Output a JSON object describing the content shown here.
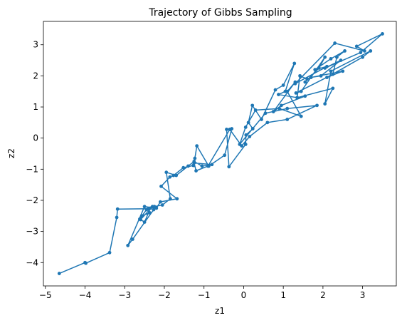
{
  "chart_data": {
    "type": "line",
    "title": "Trajectory of Gibbs Sampling",
    "xlabel": "z1",
    "ylabel": "z2",
    "xlim": [
      -5.05,
      3.85
    ],
    "ylim": [
      -4.75,
      3.75
    ],
    "xticks": [
      -5,
      -4,
      -3,
      -2,
      -1,
      0,
      1,
      2,
      3
    ],
    "yticks": [
      -4,
      -3,
      -2,
      -1,
      0,
      1,
      2,
      3
    ],
    "grid": false,
    "series_color": "#1f77b4",
    "marker": "circle",
    "series": [
      {
        "x": [
          -4.65,
          -4.0,
          -3.98,
          -3.38,
          -3.2,
          -3.18,
          -2.4,
          -2.37,
          -2.57,
          -2.6,
          -2.3,
          -2.27,
          -2.8,
          -2.92,
          -2.5,
          -2.2,
          -2.1,
          -1.68,
          -2.08,
          -1.86,
          -1.77,
          -1.52,
          -1.27,
          -1.23,
          -1.18,
          -0.88,
          -0.48,
          -0.3,
          -0.43,
          -0.37,
          0.05,
          0.06,
          0.23,
          0.12,
          0.22,
          0.45,
          0.8,
          1.0,
          1.28,
          1.05,
          0.88,
          1.35,
          1.42,
          1.6,
          1.55,
          1.9,
          2.05,
          1.45,
          1.32,
          2.25,
          2.35,
          2.55,
          2.2,
          1.8,
          2.1,
          1.3,
          2.3,
          3.05,
          2.85,
          3.5,
          2.95,
          2.05,
          2.45,
          1.95,
          1.7,
          2.5,
          2.1,
          3.0,
          3.2,
          2.2,
          2.05,
          2.25,
          1.35,
          1.55,
          0.95,
          0.75,
          1.3,
          1.1,
          1.45,
          0.9,
          0.3,
          0.05,
          -0.1,
          0.55,
          1.1,
          1.85,
          1.1,
          0.6,
          0.15,
          -0.05,
          -0.35,
          -0.9,
          -1.2,
          -1.25,
          -0.8,
          -1.05,
          -1.25,
          -1.4,
          -1.7,
          -1.95,
          -1.85,
          -2.05,
          -2.25,
          -2.45,
          -2.62,
          -2.5,
          -2.35
        ]
      }
    ]
  }
}
